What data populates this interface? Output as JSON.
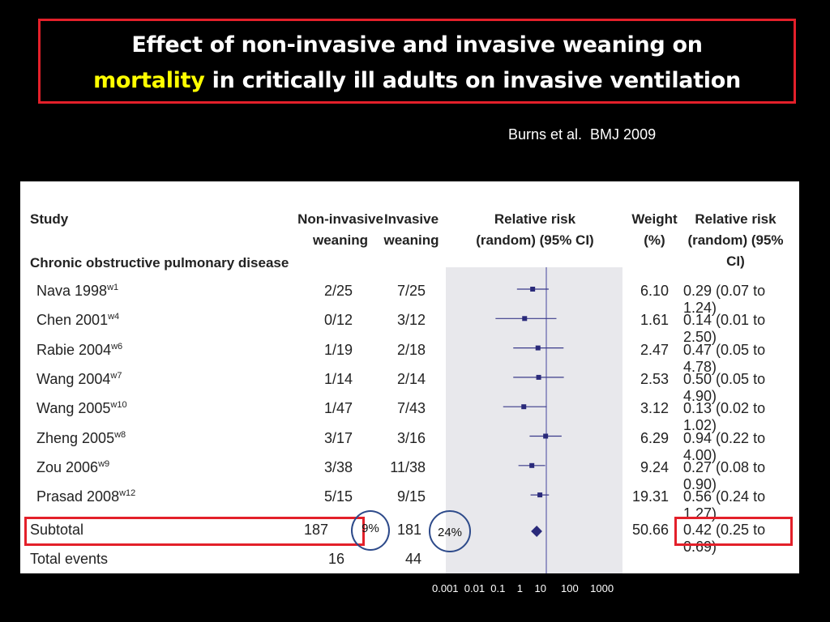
{
  "title": {
    "line1": "Effect of non-invasive and invasive weaning on",
    "line2_highlight": "mortality",
    "line2_rest": " in critically ill adults on invasive ventilation"
  },
  "citation": "Burns et al.  BMJ 2009",
  "colors": {
    "highlight": "#ffff00",
    "frame": "#e3202a",
    "marker": "#2a2a7a",
    "circle": "#2d4a8a",
    "line": "#7a7ab8"
  },
  "headers": {
    "study": "Study",
    "noninvasive": [
      "Non-invasive",
      "weaning"
    ],
    "invasive": [
      "Invasive",
      "weaning"
    ],
    "rr_plot": [
      "Relative risk",
      "(random) (95% CI)"
    ],
    "weight": [
      "Weight",
      "(%)"
    ],
    "rr_text": [
      "Relative risk",
      "(random) (95% CI)"
    ]
  },
  "group_label": "Chronic obstructive pulmonary disease",
  "subtotal": {
    "label": "Subtotal",
    "noninvasive": "187",
    "invasive": "181",
    "weight": "50.66",
    "ci": "0.42 (0.25 to 0.69)"
  },
  "total_events": {
    "label": "Total events",
    "noninvasive": "16",
    "invasive": "44"
  },
  "annotations": {
    "noninvasive_pct": "9%",
    "invasive_pct": "24%"
  },
  "x_axis_ticks_text": "0.001  0.01  0.1    1    10     100    1000",
  "chart_data": {
    "type": "forest",
    "x_scale": "log",
    "xlim": [
      0.001,
      1000
    ],
    "reference_line": 1,
    "studies": [
      {
        "name": "Nava 1998",
        "sup": "w1",
        "noninvasive": "2/25",
        "invasive": "7/25",
        "weight": "6.10",
        "ci_text": "0.29 (0.07 to 1.24)",
        "rr": 0.29,
        "lo": 0.07,
        "hi": 1.24
      },
      {
        "name": "Chen 2001",
        "sup": "w4",
        "noninvasive": "0/12",
        "invasive": "3/12",
        "weight": "1.61",
        "ci_text": "0.14 (0.01 to 2.50)",
        "rr": 0.14,
        "lo": 0.01,
        "hi": 2.5
      },
      {
        "name": "Rabie 2004",
        "sup": "w6",
        "noninvasive": "1/19",
        "invasive": "2/18",
        "weight": "2.47",
        "ci_text": "0.47 (0.05 to 4.78)",
        "rr": 0.47,
        "lo": 0.05,
        "hi": 4.78
      },
      {
        "name": "Wang 2004",
        "sup": "w7",
        "noninvasive": "1/14",
        "invasive": "2/14",
        "weight": "2.53",
        "ci_text": "0.50 (0.05 to 4.90)",
        "rr": 0.5,
        "lo": 0.05,
        "hi": 4.9
      },
      {
        "name": "Wang 2005",
        "sup": "w10",
        "noninvasive": "1/47",
        "invasive": "7/43",
        "weight": "3.12",
        "ci_text": "0.13 (0.02 to 1.02)",
        "rr": 0.13,
        "lo": 0.02,
        "hi": 1.02
      },
      {
        "name": "Zheng 2005",
        "sup": "w8",
        "noninvasive": "3/17",
        "invasive": "3/16",
        "weight": "6.29",
        "ci_text": "0.94 (0.22 to 4.00)",
        "rr": 0.94,
        "lo": 0.22,
        "hi": 4.0
      },
      {
        "name": "Zou 2006",
        "sup": "w9",
        "noninvasive": "3/38",
        "invasive": "11/38",
        "weight": "9.24",
        "ci_text": "0.27 (0.08 to 0.90)",
        "rr": 0.27,
        "lo": 0.08,
        "hi": 0.9
      },
      {
        "name": "Prasad 2008",
        "sup": "w12",
        "noninvasive": "5/15",
        "invasive": "9/15",
        "weight": "19.31",
        "ci_text": "0.56 (0.24 to 1.27)",
        "rr": 0.56,
        "lo": 0.24,
        "hi": 1.27
      }
    ],
    "summary": {
      "rr": 0.42,
      "lo": 0.25,
      "hi": 0.69
    }
  }
}
